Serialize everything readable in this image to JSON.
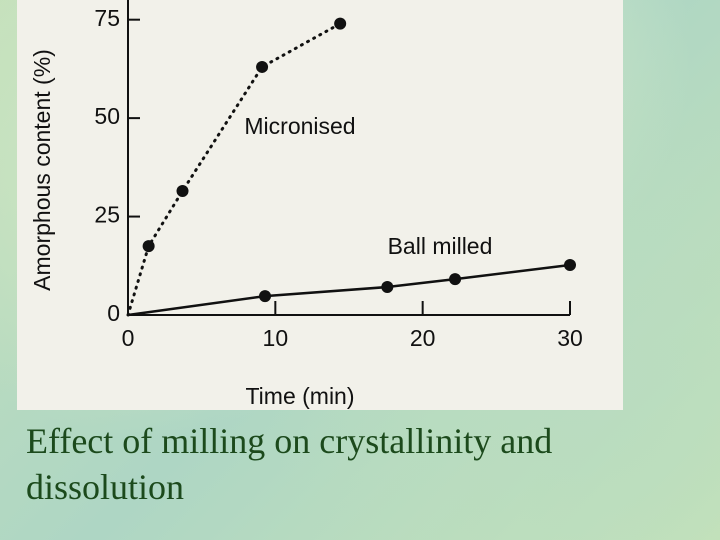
{
  "chart_data": {
    "type": "scatter",
    "x_label": "Time (min)",
    "y_label": "Amorphous content (%)",
    "xlim": [
      0,
      30
    ],
    "xticks": [
      0,
      10,
      20,
      30
    ],
    "ylim": [
      0,
      80
    ],
    "yticks": [
      0,
      25,
      50,
      75
    ],
    "series": [
      {
        "name": "Micronised",
        "color": "#111111",
        "line_style": "dotted",
        "x": [
          0,
          1.4,
          3.7,
          9.1,
          14.4
        ],
        "values": [
          0,
          17.5,
          31.5,
          63,
          74
        ]
      },
      {
        "name": "Ball milled",
        "color": "#111111",
        "line_style": "solid",
        "x": [
          0,
          9.3,
          17.6,
          22.2,
          30
        ],
        "values": [
          0,
          4.8,
          7.1,
          9.1,
          12.7
        ]
      }
    ]
  },
  "slide": {
    "caption": "Effect of milling on crystallinity and dissolution"
  }
}
